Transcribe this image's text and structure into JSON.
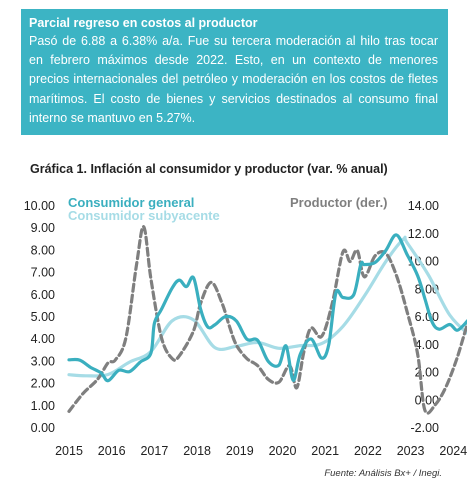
{
  "callout": {
    "title": "Parcial regreso en costos al productor",
    "body": "Pasó de 6.88 a 6.38% a/a. Fue su tercera moderación al hilo tras tocar en febrero máximos desde 2022. Esto, en un contexto de menores precios internacionales del petróleo y moderación en los costos de fletes marítimos. El costo de bienes y servicios destinados al consumo final interno se mantuvo en 5.27%."
  },
  "chart_title": "Gráfica 1. Inflación al consumidor y productor (var. % anual)",
  "source": "Fuente: Análisis Bx+ /  Inegi.",
  "colors": {
    "consumidor_general": "#3aafbf",
    "consumidor_subyacente": "#a6dce6",
    "productor": "#7f7f7f"
  },
  "chart_data": {
    "type": "line",
    "x_ticks": [
      "2015",
      "2016",
      "2017",
      "2018",
      "2019",
      "2020",
      "2021",
      "2022",
      "2023",
      "2024"
    ],
    "y_left": {
      "ticks": [
        "0.00",
        "1.00",
        "2.00",
        "3.00",
        "4.00",
        "5.00",
        "6.00",
        "7.00",
        "8.00",
        "9.00",
        "10.00"
      ],
      "range": [
        0,
        10
      ]
    },
    "y_right": {
      "ticks": [
        "-2.00",
        "0.00",
        "2.00",
        "4.00",
        "6.00",
        "8.00",
        "10.00",
        "12.00",
        "14.00"
      ],
      "range": [
        -2,
        14
      ]
    },
    "legend": {
      "general": "Consumidor general",
      "subyacente": "Consumidor subyacente",
      "productor": "Productor (der.)"
    },
    "series": [
      {
        "name": "Consumidor general",
        "axis": "left",
        "style": "solid",
        "points": [
          [
            "2015-01",
            3.07
          ],
          [
            "2015-04",
            3.06
          ],
          [
            "2015-07",
            2.74
          ],
          [
            "2015-10",
            2.48
          ],
          [
            "2015-12",
            2.13
          ],
          [
            "2016-03",
            2.6
          ],
          [
            "2016-06",
            2.54
          ],
          [
            "2016-09",
            2.97
          ],
          [
            "2016-12",
            3.36
          ],
          [
            "2017-01",
            4.72
          ],
          [
            "2017-03",
            5.35
          ],
          [
            "2017-06",
            6.31
          ],
          [
            "2017-08",
            6.66
          ],
          [
            "2017-10",
            6.37
          ],
          [
            "2017-12",
            6.77
          ],
          [
            "2018-02",
            5.34
          ],
          [
            "2018-04",
            4.55
          ],
          [
            "2018-06",
            4.65
          ],
          [
            "2018-09",
            5.02
          ],
          [
            "2018-12",
            4.83
          ],
          [
            "2019-03",
            4.0
          ],
          [
            "2019-06",
            3.95
          ],
          [
            "2019-09",
            3.0
          ],
          [
            "2019-12",
            2.83
          ],
          [
            "2020-02",
            3.7
          ],
          [
            "2020-04",
            2.15
          ],
          [
            "2020-06",
            3.33
          ],
          [
            "2020-09",
            4.01
          ],
          [
            "2020-12",
            3.15
          ],
          [
            "2021-02",
            3.76
          ],
          [
            "2021-04",
            6.08
          ],
          [
            "2021-06",
            5.88
          ],
          [
            "2021-09",
            6.0
          ],
          [
            "2021-11",
            7.37
          ],
          [
            "2021-12",
            7.36
          ],
          [
            "2022-03",
            7.45
          ],
          [
            "2022-06",
            7.99
          ],
          [
            "2022-09",
            8.7
          ],
          [
            "2022-12",
            7.82
          ],
          [
            "2023-03",
            6.85
          ],
          [
            "2023-05",
            5.84
          ],
          [
            "2023-07",
            4.79
          ],
          [
            "2023-09",
            4.45
          ],
          [
            "2023-12",
            4.66
          ],
          [
            "2024-02",
            4.4
          ],
          [
            "2024-04",
            4.65
          ],
          [
            "2024-06",
            4.98
          ],
          [
            "2024-08",
            4.99
          ],
          [
            "2024-10",
            4.76
          ],
          [
            "2024-11",
            4.55
          ]
        ]
      },
      {
        "name": "Consumidor subyacente",
        "axis": "left",
        "style": "solid",
        "points": [
          [
            "2015-01",
            2.4
          ],
          [
            "2015-06",
            2.35
          ],
          [
            "2015-12",
            2.41
          ],
          [
            "2016-06",
            2.97
          ],
          [
            "2016-12",
            3.44
          ],
          [
            "2017-06",
            4.83
          ],
          [
            "2017-12",
            4.87
          ],
          [
            "2018-06",
            3.62
          ],
          [
            "2018-12",
            3.68
          ],
          [
            "2019-06",
            3.85
          ],
          [
            "2019-12",
            3.59
          ],
          [
            "2020-06",
            3.71
          ],
          [
            "2020-12",
            3.8
          ],
          [
            "2021-06",
            4.58
          ],
          [
            "2021-12",
            5.94
          ],
          [
            "2022-06",
            7.49
          ],
          [
            "2022-11",
            8.51
          ],
          [
            "2022-12",
            8.35
          ],
          [
            "2023-06",
            6.89
          ],
          [
            "2023-12",
            5.09
          ],
          [
            "2024-06",
            4.13
          ],
          [
            "2024-09",
            3.91
          ],
          [
            "2024-11",
            3.8
          ]
        ]
      },
      {
        "name": "Productor (der.)",
        "axis": "right",
        "style": "dashed",
        "points": [
          [
            "2015-01",
            -0.8
          ],
          [
            "2015-05",
            0.5
          ],
          [
            "2015-09",
            1.5
          ],
          [
            "2015-12",
            2.7
          ],
          [
            "2016-02",
            2.9
          ],
          [
            "2016-05",
            4.5
          ],
          [
            "2016-08",
            9.8
          ],
          [
            "2016-10",
            12.5
          ],
          [
            "2016-12",
            8.8
          ],
          [
            "2017-03",
            4.5
          ],
          [
            "2017-06",
            3.0
          ],
          [
            "2017-08",
            3.2
          ],
          [
            "2017-12",
            5.0
          ],
          [
            "2018-02",
            7.0
          ],
          [
            "2018-05",
            8.5
          ],
          [
            "2018-08",
            7.0
          ],
          [
            "2018-10",
            5.4
          ],
          [
            "2018-12",
            4.0
          ],
          [
            "2019-03",
            3.0
          ],
          [
            "2019-06",
            2.5
          ],
          [
            "2019-09",
            1.5
          ],
          [
            "2019-12",
            1.3
          ],
          [
            "2020-03",
            2.5
          ],
          [
            "2020-05",
            0.9
          ],
          [
            "2020-07",
            3.5
          ],
          [
            "2020-09",
            5.2
          ],
          [
            "2020-12",
            4.6
          ],
          [
            "2021-03",
            7.0
          ],
          [
            "2021-06",
            10.7
          ],
          [
            "2021-08",
            10.0
          ],
          [
            "2021-10",
            10.8
          ],
          [
            "2021-12",
            8.9
          ],
          [
            "2022-03",
            10.4
          ],
          [
            "2022-06",
            10.6
          ],
          [
            "2022-09",
            9.0
          ],
          [
            "2022-12",
            6.4
          ],
          [
            "2023-03",
            3.3
          ],
          [
            "2023-05",
            -0.7
          ],
          [
            "2023-08",
            -0.3
          ],
          [
            "2023-11",
            1.0
          ],
          [
            "2024-02",
            3.0
          ],
          [
            "2024-05",
            5.5
          ],
          [
            "2024-08",
            7.6
          ],
          [
            "2024-10",
            6.88
          ],
          [
            "2024-11",
            6.38
          ]
        ]
      }
    ],
    "grid": false,
    "legend_placement": "top"
  }
}
